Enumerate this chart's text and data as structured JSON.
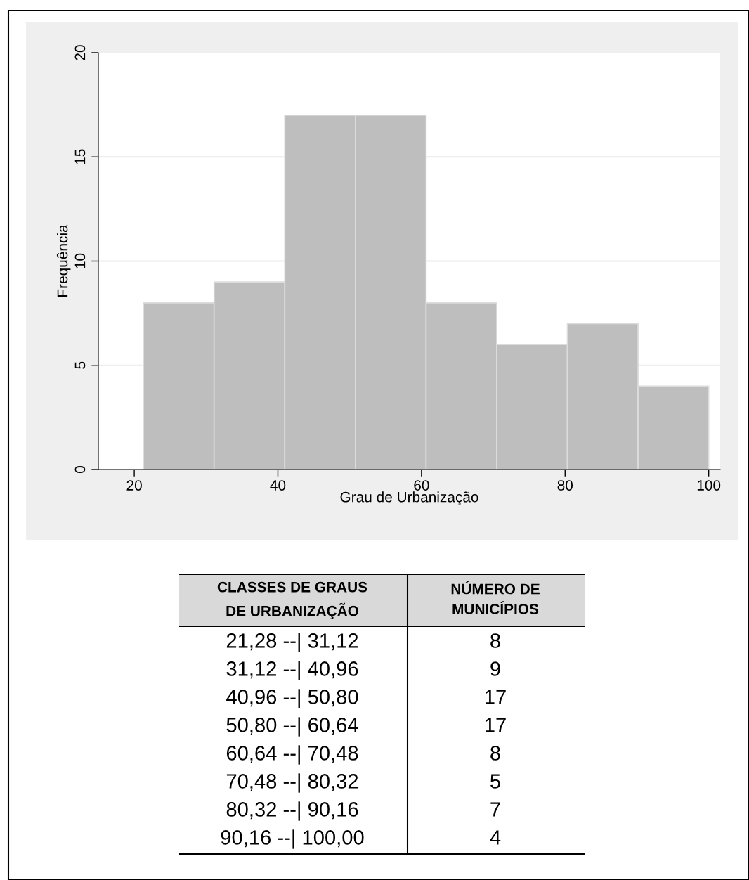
{
  "chart_data": [
    {
      "type": "histogram",
      "xlabel": "Grau de Urbanização",
      "ylabel": "Frequência",
      "bins": [
        21.28,
        31.12,
        40.96,
        50.8,
        60.64,
        70.48,
        80.32,
        90.16,
        100.0
      ],
      "values": [
        8,
        9,
        17,
        17,
        8,
        6,
        7,
        4
      ],
      "color": "#bebebe",
      "xlim": [
        15.0,
        101.6
      ],
      "xticks": [
        20,
        40,
        60,
        80,
        100
      ],
      "ylim": [
        0,
        20
      ],
      "yticks": [
        0,
        5,
        10,
        15,
        20
      ],
      "grid": "y"
    },
    {
      "type": "other",
      "annotations": [
        "CLASSES DE GRAUS\nDE URBANIZAÇÃO",
        "NÚMERO DE\nMUNICÍPIOS",
        "21,28 --| 31,12",
        "8",
        "31,12 --| 40,96",
        "9",
        "40,96 --| 50,80",
        "17",
        "50,80 --| 60,64",
        "17",
        "60,64 --| 70,48",
        "8",
        "70,48 --| 80,32",
        "5",
        "80,32 --| 90,16",
        "7",
        "90,16 --| 100,00",
        "4"
      ]
    }
  ]
}
